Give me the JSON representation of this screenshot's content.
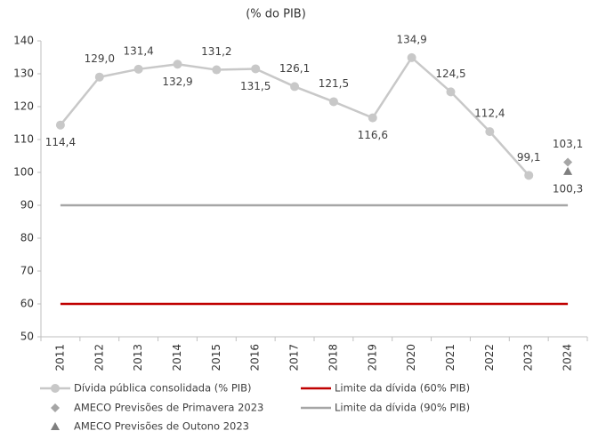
{
  "chart_data": {
    "type": "line",
    "title": "(% do PIB)",
    "categories": [
      "2011",
      "2012",
      "2013",
      "2014",
      "2015",
      "2016",
      "2017",
      "2018",
      "2019",
      "2020",
      "2021",
      "2022",
      "2023",
      "2024"
    ],
    "ylim": [
      50,
      140
    ],
    "yticks": [
      50,
      60,
      70,
      80,
      90,
      100,
      110,
      120,
      130,
      140
    ],
    "series": [
      {
        "name": "Dívida pública consolidada (% PIB)",
        "color": "#c8c8c8",
        "marker": "circle",
        "values": [
          114.4,
          129.0,
          131.4,
          132.9,
          131.2,
          131.5,
          126.1,
          121.5,
          116.6,
          134.9,
          124.5,
          112.4,
          99.1,
          null
        ],
        "value_labels": [
          "114,4",
          "129,0",
          "131,4",
          "132,9",
          "131,2",
          "131,5",
          "126,1",
          "121,5",
          "116,6",
          "134,9",
          "124,5",
          "112,4",
          "99,1",
          null
        ]
      },
      {
        "name": "AMECO Previsões de Primavera 2023",
        "color": "#a6a6a6",
        "marker": "diamond",
        "values": [
          null,
          null,
          null,
          null,
          null,
          null,
          null,
          null,
          null,
          null,
          null,
          null,
          null,
          103.1
        ],
        "value_labels": [
          null,
          null,
          null,
          null,
          null,
          null,
          null,
          null,
          null,
          null,
          null,
          null,
          null,
          "103,1"
        ]
      },
      {
        "name": "AMECO Previsões de Outono 2023",
        "color": "#7f7f7f",
        "marker": "triangle",
        "values": [
          null,
          null,
          null,
          null,
          null,
          null,
          null,
          null,
          null,
          null,
          null,
          null,
          null,
          100.3
        ],
        "value_labels": [
          null,
          null,
          null,
          null,
          null,
          null,
          null,
          null,
          null,
          null,
          null,
          null,
          null,
          "100,3"
        ]
      },
      {
        "name": "Limite da dívida (60% PIB)",
        "color": "#c00000",
        "marker": "none",
        "values": [
          60,
          60,
          60,
          60,
          60,
          60,
          60,
          60,
          60,
          60,
          60,
          60,
          60,
          60
        ]
      },
      {
        "name": "Limite da dívida (90% PIB)",
        "color": "#a6a6a6",
        "marker": "none",
        "values": [
          90,
          90,
          90,
          90,
          90,
          90,
          90,
          90,
          90,
          90,
          90,
          90,
          90,
          90
        ]
      }
    ]
  }
}
